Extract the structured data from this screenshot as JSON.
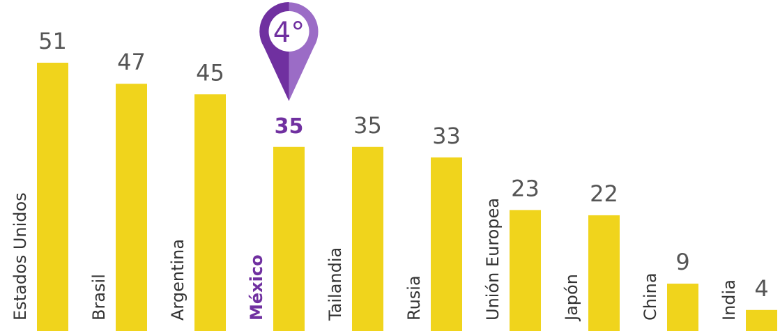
{
  "chart_data": {
    "type": "bar",
    "categories": [
      "Estados Unidos",
      "Brasil",
      "Argentina",
      "México",
      "Tailandia",
      "Rusia",
      "Unión Europea",
      "Japón",
      "China",
      "India"
    ],
    "values": [
      51,
      47,
      45,
      35,
      35,
      33,
      23,
      22,
      9,
      4
    ],
    "color": "#f0d41c",
    "highlight": {
      "index": 3,
      "color": "#7030a0",
      "annotation": "4°"
    }
  }
}
